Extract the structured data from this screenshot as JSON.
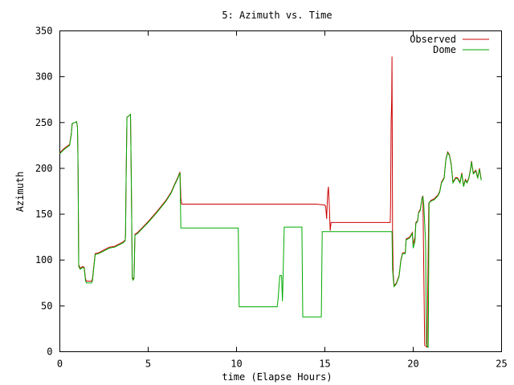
{
  "chart_data": {
    "type": "line",
    "title": "5: Azimuth vs. Time",
    "xlabel": "time (Elapse Hours)",
    "ylabel": "Azimuth",
    "xlim": [
      0,
      25
    ],
    "ylim": [
      0,
      350
    ],
    "xticks": [
      0,
      5,
      10,
      15,
      20,
      25
    ],
    "yticks": [
      0,
      50,
      100,
      150,
      200,
      250,
      300,
      350
    ],
    "grid": false,
    "legend_position": "top-right",
    "series": [
      {
        "name": "Observed",
        "color": "#cc0000",
        "points": [
          [
            0.0,
            217
          ],
          [
            0.2,
            221
          ],
          [
            0.4,
            224
          ],
          [
            0.55,
            226
          ],
          [
            0.65,
            238
          ],
          [
            0.7,
            249
          ],
          [
            0.85,
            250
          ],
          [
            0.95,
            251
          ],
          [
            1.0,
            245
          ],
          [
            1.03,
            200
          ],
          [
            1.07,
            95
          ],
          [
            1.15,
            91
          ],
          [
            1.3,
            93
          ],
          [
            1.38,
            92
          ],
          [
            1.45,
            80
          ],
          [
            1.5,
            77
          ],
          [
            1.6,
            77
          ],
          [
            1.8,
            77
          ],
          [
            1.85,
            80
          ],
          [
            2.0,
            107
          ],
          [
            2.2,
            108
          ],
          [
            2.5,
            111
          ],
          [
            2.8,
            114
          ],
          [
            3.1,
            115
          ],
          [
            3.3,
            117
          ],
          [
            3.6,
            120
          ],
          [
            3.7,
            122
          ],
          [
            3.72,
            128
          ],
          [
            3.75,
            188
          ],
          [
            3.8,
            256
          ],
          [
            3.9,
            257
          ],
          [
            4.0,
            259
          ],
          [
            4.05,
            178
          ],
          [
            4.1,
            81
          ],
          [
            4.15,
            79
          ],
          [
            4.2,
            81
          ],
          [
            4.25,
            128
          ],
          [
            4.4,
            130
          ],
          [
            4.7,
            136
          ],
          [
            5.0,
            142
          ],
          [
            5.5,
            153
          ],
          [
            6.0,
            165
          ],
          [
            6.3,
            174
          ],
          [
            6.5,
            183
          ],
          [
            6.7,
            191
          ],
          [
            6.75,
            194
          ],
          [
            6.8,
            196
          ],
          [
            6.85,
            167
          ],
          [
            6.9,
            161
          ],
          [
            7.5,
            161
          ],
          [
            8.0,
            161
          ],
          [
            9.0,
            161
          ],
          [
            10.0,
            161
          ],
          [
            11.0,
            161
          ],
          [
            12.0,
            161
          ],
          [
            13.0,
            161
          ],
          [
            14.0,
            161
          ],
          [
            14.5,
            161
          ],
          [
            15.0,
            160
          ],
          [
            15.05,
            158
          ],
          [
            15.1,
            145
          ],
          [
            15.15,
            170
          ],
          [
            15.2,
            180
          ],
          [
            15.25,
            160
          ],
          [
            15.3,
            132
          ],
          [
            15.35,
            141
          ],
          [
            15.4,
            141
          ],
          [
            16.0,
            141
          ],
          [
            17.0,
            141
          ],
          [
            18.0,
            141
          ],
          [
            18.7,
            141
          ],
          [
            18.72,
            160
          ],
          [
            18.75,
            250
          ],
          [
            18.78,
            275
          ],
          [
            18.8,
            322
          ],
          [
            18.83,
            130
          ],
          [
            18.87,
            85
          ],
          [
            18.92,
            72
          ],
          [
            19.05,
            75
          ],
          [
            19.2,
            83
          ],
          [
            19.3,
            100
          ],
          [
            19.4,
            108
          ],
          [
            19.55,
            108
          ],
          [
            19.6,
            123
          ],
          [
            19.8,
            125
          ],
          [
            19.95,
            130
          ],
          [
            20.0,
            117
          ],
          [
            20.1,
            125
          ],
          [
            20.15,
            141
          ],
          [
            20.25,
            143
          ],
          [
            20.3,
            152
          ],
          [
            20.4,
            155
          ],
          [
            20.5,
            168
          ],
          [
            20.55,
            170
          ],
          [
            20.6,
            85
          ],
          [
            20.65,
            7
          ],
          [
            20.72,
            6
          ],
          [
            20.78,
            5
          ],
          [
            20.82,
            60
          ],
          [
            20.88,
            162
          ],
          [
            21.0,
            165
          ],
          [
            21.2,
            167
          ],
          [
            21.4,
            171
          ],
          [
            21.5,
            175
          ],
          [
            21.6,
            185
          ],
          [
            21.75,
            190
          ],
          [
            21.85,
            210
          ],
          [
            21.95,
            218
          ],
          [
            22.05,
            215
          ],
          [
            22.15,
            205
          ],
          [
            22.25,
            185
          ],
          [
            22.4,
            190
          ],
          [
            22.5,
            190
          ],
          [
            22.65,
            185
          ],
          [
            22.75,
            195
          ],
          [
            22.85,
            181
          ],
          [
            22.95,
            188
          ],
          [
            23.05,
            185
          ],
          [
            23.15,
            190
          ],
          [
            23.25,
            200
          ],
          [
            23.3,
            208
          ],
          [
            23.4,
            195
          ],
          [
            23.55,
            198
          ],
          [
            23.65,
            190
          ],
          [
            23.75,
            200
          ],
          [
            23.85,
            188
          ]
        ]
      },
      {
        "name": "Dome",
        "color": "#00aa00",
        "points": [
          [
            0.0,
            216
          ],
          [
            0.2,
            220
          ],
          [
            0.4,
            223
          ],
          [
            0.55,
            225
          ],
          [
            0.65,
            237
          ],
          [
            0.7,
            249
          ],
          [
            0.85,
            250
          ],
          [
            0.95,
            251
          ],
          [
            1.0,
            244
          ],
          [
            1.03,
            200
          ],
          [
            1.07,
            93
          ],
          [
            1.15,
            90
          ],
          [
            1.3,
            92
          ],
          [
            1.38,
            91
          ],
          [
            1.45,
            78
          ],
          [
            1.5,
            75
          ],
          [
            1.6,
            75
          ],
          [
            1.8,
            75
          ],
          [
            1.85,
            78
          ],
          [
            2.0,
            106
          ],
          [
            2.2,
            107
          ],
          [
            2.5,
            110
          ],
          [
            2.8,
            113
          ],
          [
            3.1,
            114
          ],
          [
            3.3,
            116
          ],
          [
            3.6,
            119
          ],
          [
            3.7,
            121
          ],
          [
            3.72,
            127
          ],
          [
            3.75,
            188
          ],
          [
            3.8,
            256
          ],
          [
            3.9,
            257
          ],
          [
            4.0,
            259
          ],
          [
            4.05,
            178
          ],
          [
            4.1,
            80
          ],
          [
            4.15,
            78
          ],
          [
            4.2,
            80
          ],
          [
            4.25,
            127
          ],
          [
            4.4,
            129
          ],
          [
            4.7,
            135
          ],
          [
            5.0,
            141
          ],
          [
            5.5,
            152
          ],
          [
            6.0,
            164
          ],
          [
            6.3,
            173
          ],
          [
            6.5,
            182
          ],
          [
            6.7,
            190
          ],
          [
            6.75,
            193
          ],
          [
            6.8,
            195
          ],
          [
            6.85,
            135
          ],
          [
            7.5,
            135
          ],
          [
            8.0,
            135
          ],
          [
            9.0,
            135
          ],
          [
            10.0,
            135
          ],
          [
            10.1,
            135
          ],
          [
            10.15,
            49
          ],
          [
            11.0,
            49
          ],
          [
            12.0,
            49
          ],
          [
            12.3,
            49
          ],
          [
            12.35,
            57
          ],
          [
            12.45,
            83
          ],
          [
            12.55,
            83
          ],
          [
            12.6,
            55
          ],
          [
            12.65,
            95
          ],
          [
            12.7,
            136
          ],
          [
            13.0,
            136
          ],
          [
            13.5,
            136
          ],
          [
            13.7,
            136
          ],
          [
            13.75,
            38
          ],
          [
            14.0,
            38
          ],
          [
            14.5,
            38
          ],
          [
            14.8,
            38
          ],
          [
            14.85,
            131
          ],
          [
            15.0,
            131
          ],
          [
            15.5,
            131
          ],
          [
            16.0,
            131
          ],
          [
            17.0,
            131
          ],
          [
            18.0,
            131
          ],
          [
            18.75,
            131
          ],
          [
            18.78,
            131
          ],
          [
            18.8,
            131
          ],
          [
            18.83,
            90
          ],
          [
            18.87,
            80
          ],
          [
            18.92,
            71
          ],
          [
            19.05,
            74
          ],
          [
            19.2,
            82
          ],
          [
            19.3,
            99
          ],
          [
            19.4,
            107
          ],
          [
            19.55,
            107
          ],
          [
            19.6,
            122
          ],
          [
            19.8,
            124
          ],
          [
            19.95,
            129
          ],
          [
            20.0,
            113
          ],
          [
            20.1,
            120
          ],
          [
            20.15,
            140
          ],
          [
            20.25,
            142
          ],
          [
            20.3,
            151
          ],
          [
            20.4,
            154
          ],
          [
            20.5,
            167
          ],
          [
            20.55,
            169
          ],
          [
            20.6,
            160
          ],
          [
            20.7,
            120
          ],
          [
            20.75,
            8
          ],
          [
            20.8,
            6
          ],
          [
            20.85,
            5
          ],
          [
            20.9,
            163
          ],
          [
            21.0,
            164
          ],
          [
            21.2,
            166
          ],
          [
            21.4,
            170
          ],
          [
            21.5,
            174
          ],
          [
            21.6,
            184
          ],
          [
            21.75,
            189
          ],
          [
            21.85,
            209
          ],
          [
            21.95,
            217
          ],
          [
            22.05,
            214
          ],
          [
            22.15,
            204
          ],
          [
            22.25,
            184
          ],
          [
            22.4,
            189
          ],
          [
            22.5,
            189
          ],
          [
            22.65,
            184
          ],
          [
            22.75,
            194
          ],
          [
            22.85,
            180
          ],
          [
            22.95,
            187
          ],
          [
            23.05,
            184
          ],
          [
            23.15,
            189
          ],
          [
            23.25,
            199
          ],
          [
            23.3,
            207
          ],
          [
            23.4,
            194
          ],
          [
            23.55,
            197
          ],
          [
            23.65,
            189
          ],
          [
            23.75,
            199
          ],
          [
            23.85,
            187
          ]
        ]
      }
    ]
  }
}
